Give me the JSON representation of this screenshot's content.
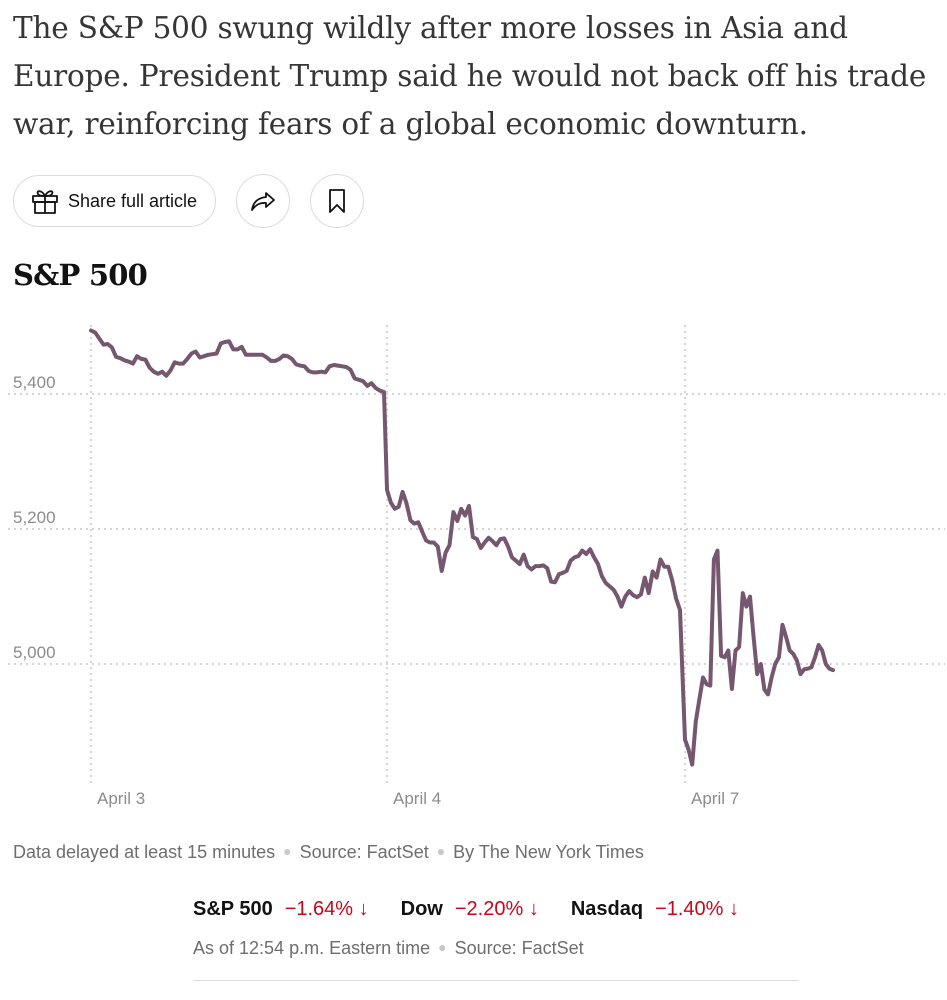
{
  "summary": "The S&P 500 swung wildly after more losses in Asia and Europe. President Trump said he would not back off his trade war, reinforcing fears of a global economic downturn.",
  "actions": {
    "share_label": "Share full article"
  },
  "colors": {
    "line": "#75576f",
    "grid": "#d5d5d5",
    "negative": "#d0021b"
  },
  "chart_data": {
    "type": "line",
    "title": "S&P 500",
    "xlabel": "",
    "ylabel": "",
    "ylim": [
      4845,
      5500
    ],
    "yticks": [
      5000,
      5200,
      5400
    ],
    "ytick_labels": [
      "5,000",
      "5,200",
      "5,400"
    ],
    "days": [
      "April 3",
      "April 4",
      "April 7"
    ],
    "grid": true,
    "series": [
      {
        "name": "",
        "day_segments": [
          {
            "day": "April 3",
            "values": [
              5494,
              5491,
              5482,
              5473,
              5474,
              5469,
              5455,
              5453,
              5450,
              5448,
              5445,
              5456,
              5452,
              5451,
              5439,
              5433,
              5430,
              5433,
              5427,
              5435,
              5447,
              5445,
              5445,
              5452,
              5460,
              5463,
              5454,
              5456,
              5458,
              5459,
              5460,
              5475,
              5477,
              5478,
              5466,
              5466,
              5470,
              5458,
              5458,
              5458,
              5458,
              5458,
              5454,
              5449,
              5449,
              5452,
              5457,
              5456,
              5452,
              5444,
              5442,
              5441,
              5434,
              5432,
              5432,
              5433,
              5432,
              5441,
              5443,
              5442,
              5441,
              5440,
              5436,
              5423,
              5421,
              5419,
              5412,
              5416,
              5409,
              5405,
              5403
            ]
          },
          {
            "day": "April 4",
            "values": [
              5258,
              5239,
              5230,
              5233,
              5255,
              5238,
              5213,
              5208,
              5210,
              5196,
              5183,
              5180,
              5180,
              5174,
              5138,
              5165,
              5176,
              5225,
              5212,
              5230,
              5220,
              5234,
              5188,
              5185,
              5172,
              5180,
              5187,
              5182,
              5176,
              5185,
              5186,
              5174,
              5158,
              5153,
              5148,
              5162,
              5145,
              5140,
              5145,
              5145,
              5146,
              5142,
              5122,
              5121,
              5133,
              5135,
              5138,
              5153,
              5158,
              5160,
              5168,
              5163,
              5170,
              5158,
              5148,
              5130,
              5120,
              5115,
              5110,
              5100,
              5085,
              5100,
              5108,
              5102,
              5099,
              5103,
              5128,
              5105,
              5137,
              5128,
              5155,
              5144,
              5144,
              5124,
              5097,
              5080
            ]
          },
          {
            "day": "April 7",
            "values": [
              4888,
              4873,
              4851,
              4915,
              4948,
              4980,
              4970,
              4968,
              5155,
              5168,
              5012,
              5010,
              5020,
              4963,
              5020,
              5025,
              5105,
              5085,
              5100,
              5040,
              4985,
              5000,
              4962,
              4955,
              4980,
              5000,
              5010,
              5058,
              5040,
              5020,
              5015,
              5005,
              4985,
              4992,
              4993,
              4995,
              5010,
              5028,
              5020,
              5000,
              4993,
              4991
            ]
          }
        ]
      }
    ]
  },
  "footnote": {
    "delay": "Data delayed at least 15 minutes",
    "source": "Source: FactSet",
    "byline": "By The New York Times"
  },
  "tickers": {
    "items": [
      {
        "name": "S&P 500",
        "change": "−1.64%",
        "arrow": "↓"
      },
      {
        "name": "Dow",
        "change": "−2.20%",
        "arrow": "↓"
      },
      {
        "name": "Nasdaq",
        "change": "−1.40%",
        "arrow": "↓"
      }
    ],
    "as_of": "As of 12:54 p.m. Eastern time",
    "source": "Source: FactSet"
  }
}
